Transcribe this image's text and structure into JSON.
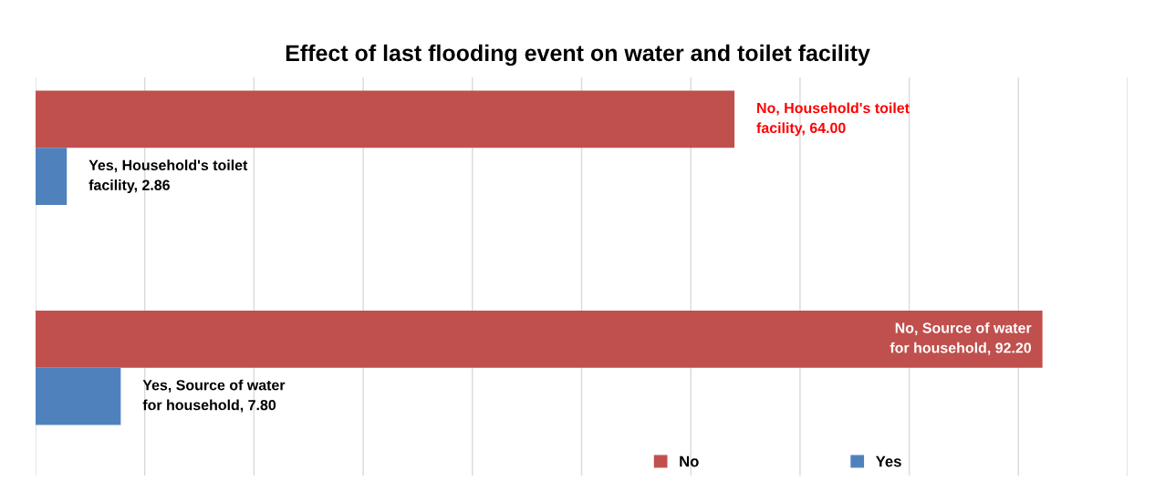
{
  "chart_data": {
    "type": "bar",
    "orientation": "horizontal",
    "title": "Effect of last flooding event on water and toilet facility",
    "categories": [
      null,
      null
    ],
    "series": [
      {
        "name": "No",
        "color": "#c0504d",
        "values": [
          64.0,
          92.2
        ],
        "value_labels": [
          "No, Household's toilet facility, 64.00",
          "No, Source of water for household, 92.20"
        ]
      },
      {
        "name": "Yes",
        "color": "#4f81bd",
        "values": [
          2.86,
          7.8
        ],
        "value_labels": [
          "Yes, Household's toilet facility, 2.86",
          "Yes, Source of water for household, 7.80"
        ]
      }
    ],
    "xlim": [
      0,
      100
    ],
    "xticks": [
      0,
      10,
      20,
      30,
      40,
      50,
      60,
      70,
      80,
      90,
      100
    ],
    "tick_labels": false,
    "grid": "x",
    "legend": "bottom"
  }
}
